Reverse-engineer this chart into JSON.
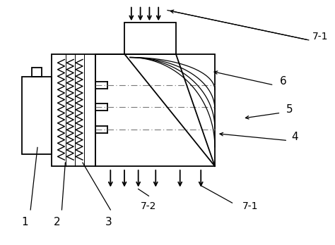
{
  "bg_color": "#ffffff",
  "line_color": "#000000",
  "dash_color": "#777777",
  "fig_width": 4.74,
  "fig_height": 3.48,
  "dpi": 100
}
